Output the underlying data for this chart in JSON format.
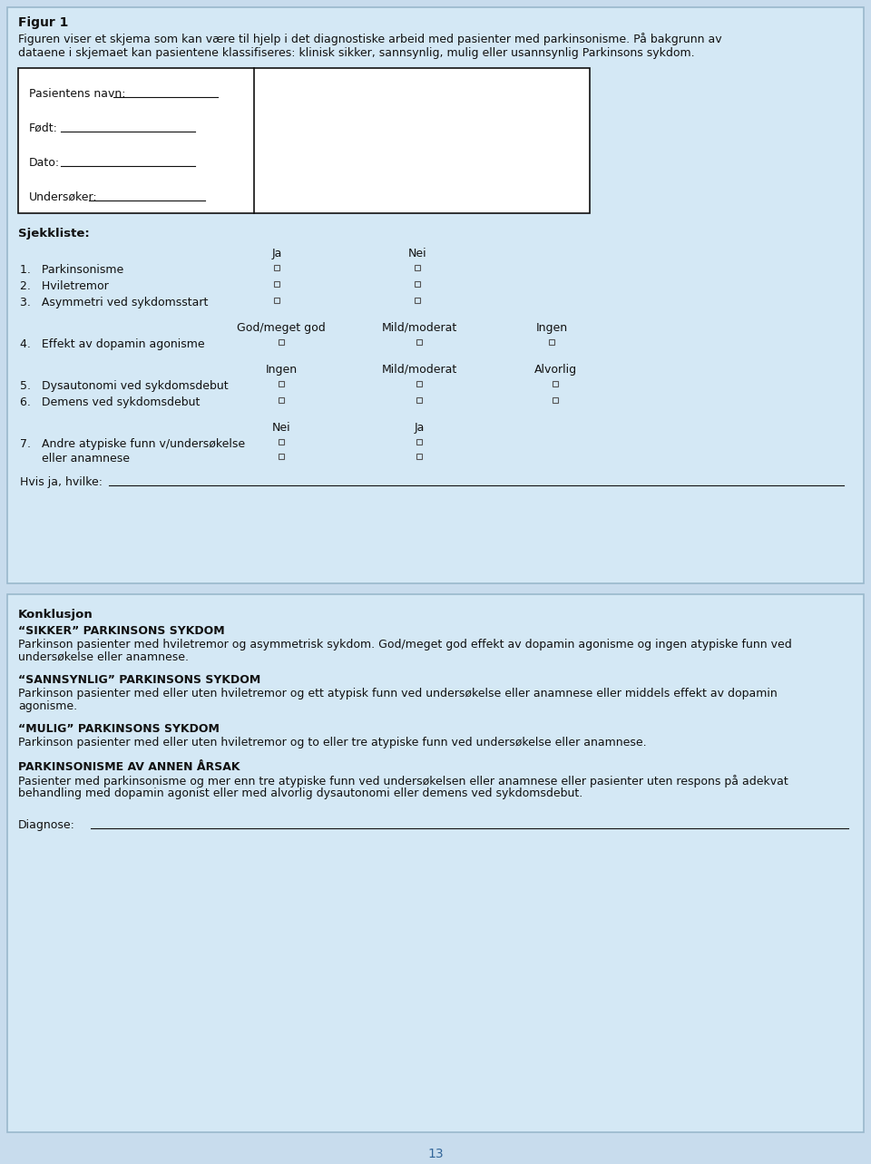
{
  "title": "Figur 1",
  "subtitle_line1": "Figuren viser et skjema som kan være til hjelp i det diagnostiske arbeid med pasienter med parkinsonisme. På bakgrunn av",
  "subtitle_line2": "dataene i skjemaet kan pasientene klassifiseres: klinisk sikker, sannsynlig, mulig eller usannsynlig Parkinsons sykdom.",
  "form_fields": [
    "Pasientens navn:",
    "Født:",
    "Dato:",
    "Undersøker:"
  ],
  "form_underline_lengths": [
    115,
    148,
    148,
    128
  ],
  "sjekkliste_label": "Sjekkliste:",
  "ja_label": "Ja",
  "nei_label": "Nei",
  "ja_nei_items": [
    [
      "1.   Parkinsonisme"
    ],
    [
      "2.   Hviletremor"
    ],
    [
      "3.   Asymmetri ved sykdomsstart"
    ]
  ],
  "god_label": "God/meget god",
  "mild_label": "Mild/moderat",
  "ingen_label": "Ingen",
  "item4": "4.   Effekt av dopamin agonisme",
  "ingen_label2": "Ingen",
  "mild_label2": "Mild/moderat",
  "alvorlig_label": "Alvorlig",
  "item5": "5.   Dysautonomi ved sykdomsdebut",
  "item6": "6.   Demens ved sykdomsdebut",
  "nei_label2": "Nei",
  "ja_label2": "Ja",
  "item7a": "7.   Andre atypiske funn v/undersøkelse",
  "item7b": "      eller anamnese",
  "hvis_label": "Hvis ja, hvilke:",
  "konklusjon_label": "Konklusjon",
  "sikker_header": "“SIKKER” PARKINSONS SYKDOM",
  "sikker_line1": "Parkinson pasienter med hviletremor og asymmetrisk sykdom. God/meget god effekt av dopamin agonisme og ingen atypiske funn ved",
  "sikker_line2": "undersøkelse eller anamnese.",
  "sann_header": "“SANNSYNLIG” PARKINSONS SYKDOM",
  "sann_line1": "Parkinson pasienter med eller uten hviletremor og ett atypisk funn ved undersøkelse eller anamnese eller middels effekt av dopamin",
  "sann_line2": "agonisme.",
  "mulig_header": "“MULIG” PARKINSONS SYKDOM",
  "mulig_line1": "Parkinson pasienter med eller uten hviletremor og to eller tre atypiske funn ved undersøkelse eller anamnese.",
  "annen_header": "PARKINSONISME AV ANNEN ÅRSAK",
  "annen_line1": "Pasienter med parkinsonisme og mer enn tre atypiske funn ved undersøkelsen eller anamnese eller pasienter uten respons på adekvat",
  "annen_line2": "behandling med dopamin agonist eller med alvorlig dysautonomi eller demens ved sykdomsdebut.",
  "diagnose_label": "Diagnose:",
  "page_number": "13",
  "page_bg": "#c8dced",
  "panel_bg": "#d4e8f5",
  "panel_border": "#9ab8cc",
  "white": "#ffffff",
  "black": "#111111",
  "checkbox_color": "#555555",
  "page_num_color": "#336699"
}
